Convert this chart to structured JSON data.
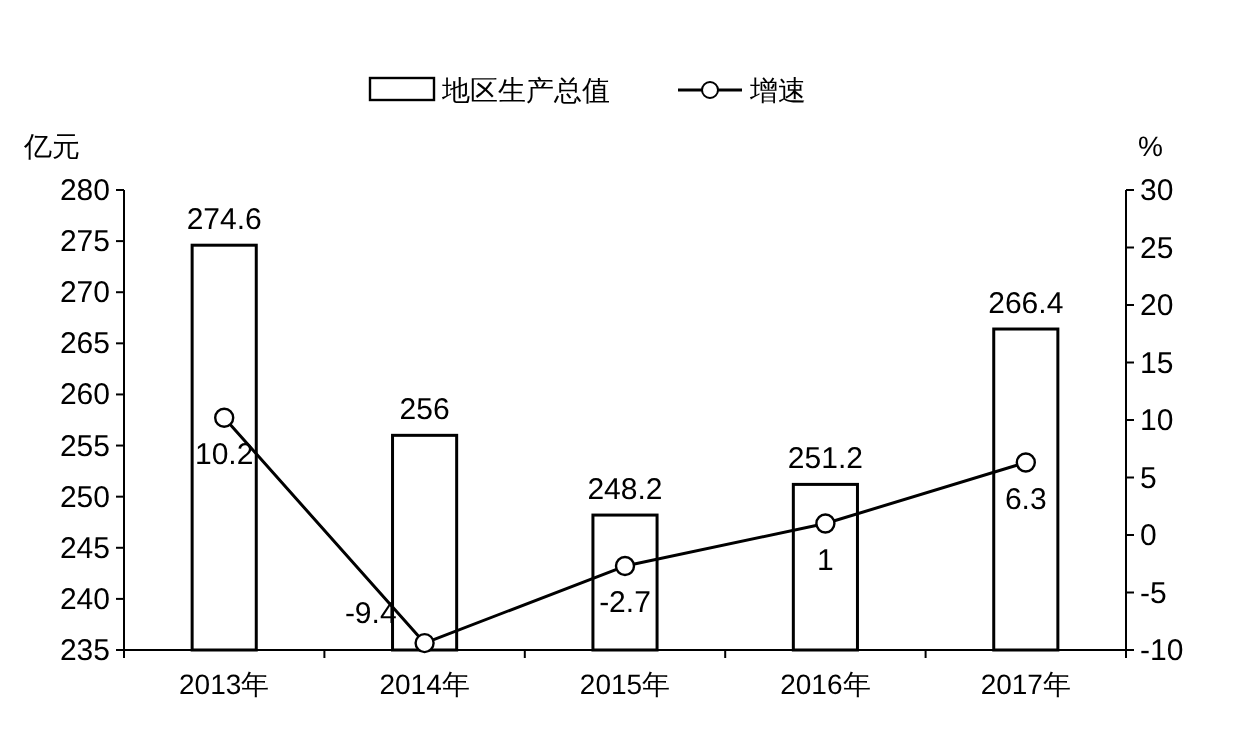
{
  "chart_data": {
    "type": "bar",
    "categories": [
      "2013年",
      "2014年",
      "2015年",
      "2016年",
      "2017年"
    ],
    "series": [
      {
        "name": "地区生产总值",
        "color": "#ffffff",
        "values": [
          274.6,
          256,
          248.2,
          251.2,
          266.4
        ]
      },
      {
        "name": "增速",
        "type": "line",
        "axis": "y2",
        "color": "#000000",
        "marker": "circle",
        "values": [
          10.2,
          -9.4,
          -2.7,
          1,
          6.3
        ]
      }
    ],
    "ylabel": "亿元",
    "y2label": "%",
    "ylim": [
      235,
      280
    ],
    "yticks": [
      235,
      240,
      245,
      250,
      255,
      260,
      265,
      270,
      275,
      280
    ],
    "y2lim": [
      -10,
      30
    ],
    "y2ticks": [
      -10,
      -5,
      0,
      5,
      10,
      15,
      20,
      25,
      30
    ],
    "data_labels": true,
    "legend": "top",
    "grid": false
  }
}
